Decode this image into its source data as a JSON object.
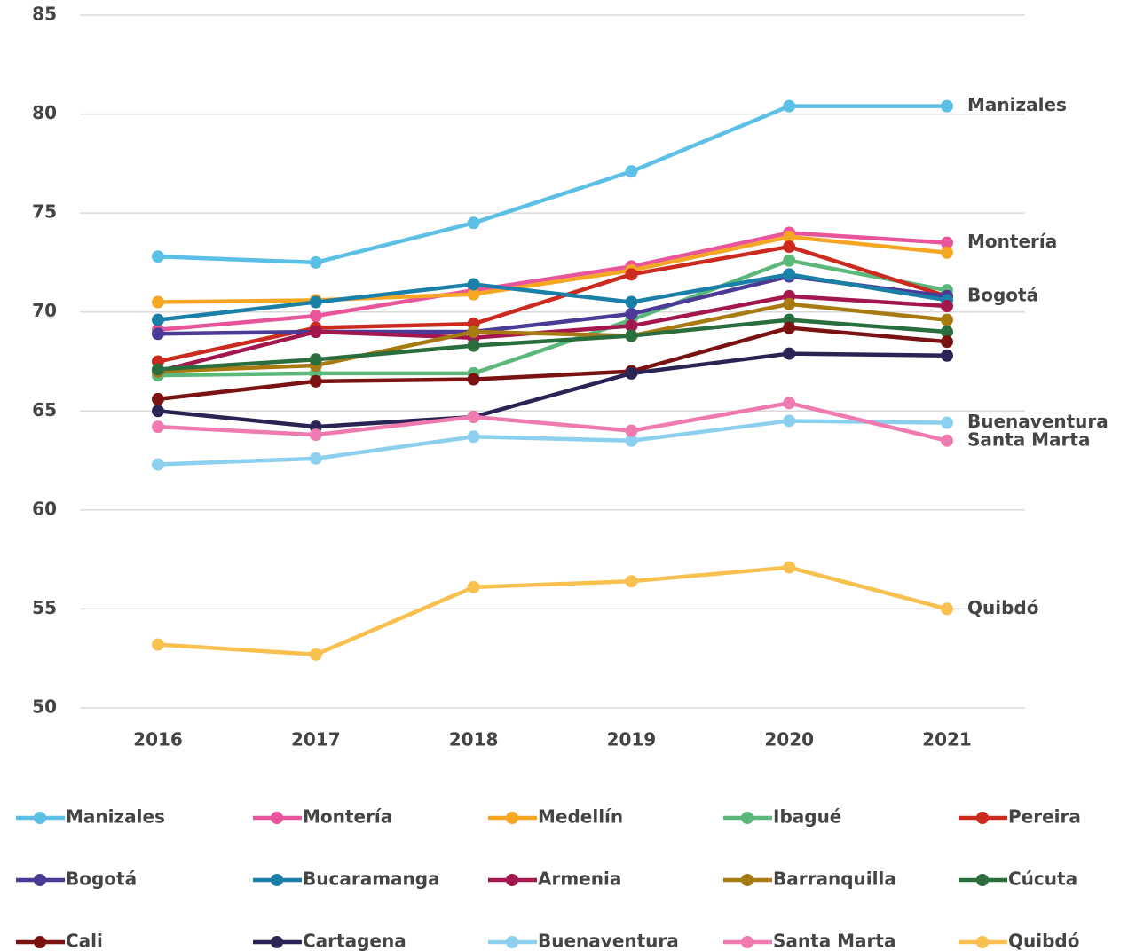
{
  "chart_data": {
    "type": "line",
    "categories": [
      "2016",
      "2017",
      "2018",
      "2019",
      "2020",
      "2021"
    ],
    "ylim": [
      50,
      85
    ],
    "yticks": [
      50,
      55,
      60,
      65,
      70,
      75,
      80,
      85
    ],
    "grid": true,
    "series": [
      {
        "name": "Manizales",
        "color": "#5bbfe6",
        "values": [
          72.8,
          72.5,
          74.5,
          77.1,
          80.4,
          80.4
        ]
      },
      {
        "name": "Montería",
        "color": "#e8559a",
        "values": [
          69.1,
          69.8,
          71.1,
          72.3,
          74.0,
          73.5
        ]
      },
      {
        "name": "Medellín",
        "color": "#f5a623",
        "values": [
          70.5,
          70.6,
          70.9,
          72.1,
          73.8,
          73.0
        ]
      },
      {
        "name": "Ibagué",
        "color": "#5cb87a",
        "values": [
          66.8,
          66.9,
          66.9,
          69.6,
          72.6,
          71.1
        ]
      },
      {
        "name": "Pereira",
        "color": "#cc2a1f",
        "values": [
          67.5,
          69.2,
          69.4,
          71.9,
          73.3,
          70.8
        ]
      },
      {
        "name": "Bogotá",
        "color": "#4b3a96",
        "values": [
          68.9,
          69.0,
          69.0,
          69.9,
          71.8,
          70.8
        ]
      },
      {
        "name": "Bucaramanga",
        "color": "#1a80a8",
        "values": [
          69.6,
          70.5,
          71.4,
          70.5,
          71.9,
          70.6
        ]
      },
      {
        "name": "Armenia",
        "color": "#a3174e",
        "values": [
          67.0,
          69.0,
          68.7,
          69.3,
          70.8,
          70.3
        ]
      },
      {
        "name": "Barranquilla",
        "color": "#a87a12",
        "values": [
          67.0,
          67.3,
          69.0,
          68.8,
          70.4,
          69.6
        ]
      },
      {
        "name": "Cúcuta",
        "color": "#2a6e3e",
        "values": [
          67.1,
          67.6,
          68.3,
          68.8,
          69.6,
          69.0
        ]
      },
      {
        "name": "Cali",
        "color": "#7a1212",
        "values": [
          65.6,
          66.5,
          66.6,
          67.0,
          69.2,
          68.5
        ]
      },
      {
        "name": "Cartagena",
        "color": "#2a2455",
        "values": [
          65.0,
          64.2,
          64.7,
          66.9,
          67.9,
          67.8
        ]
      },
      {
        "name": "Buenaventura",
        "color": "#8cd0ee",
        "values": [
          62.3,
          62.6,
          63.7,
          63.5,
          64.5,
          64.4
        ]
      },
      {
        "name": "Santa Marta",
        "color": "#ee7ab0",
        "values": [
          64.2,
          63.8,
          64.7,
          64.0,
          65.4,
          63.5
        ]
      },
      {
        "name": "Quibdó",
        "color": "#f7c04f",
        "values": [
          53.2,
          52.7,
          56.1,
          56.4,
          57.1,
          55.0
        ]
      }
    ],
    "annotations": [
      "Manizales",
      "Montería",
      "Bogotá",
      "Buenaventura",
      "Santa Marta",
      "Quibdó"
    ]
  }
}
